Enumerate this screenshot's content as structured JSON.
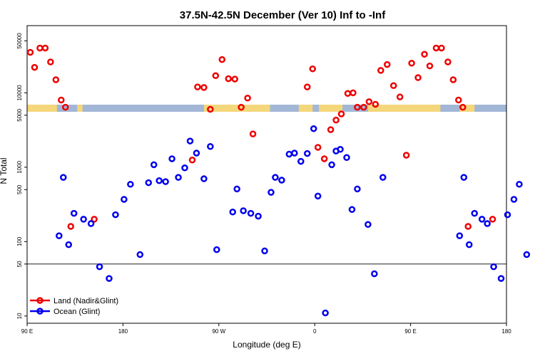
{
  "chart_data": {
    "type": "scatter",
    "title": "37.5N-42.5N December (Ver 10)   Inf to -Inf",
    "xlabel": "Longitude (deg E)",
    "ylabel": "N Total",
    "x_ticks": [
      {
        "value": 90,
        "label": "90 E"
      },
      {
        "value": 180,
        "label": "180"
      },
      {
        "value": 270,
        "label": "90 W"
      },
      {
        "value": 360,
        "label": "0"
      },
      {
        "value": 450,
        "label": "90 E"
      },
      {
        "value": 540,
        "label": "180"
      }
    ],
    "y_ticks": [
      10,
      50,
      100,
      500,
      1000,
      5000,
      10000,
      50000
    ],
    "xlim": [
      90,
      540
    ],
    "ylim_log": [
      8,
      80000
    ],
    "reference_line_y": 50,
    "series": [
      {
        "name": "Land (Nadir&Glint)",
        "color": "#ee0000",
        "points": [
          [
            93,
            35000
          ],
          [
            97,
            22000
          ],
          [
            102,
            40000
          ],
          [
            107,
            40000
          ],
          [
            112,
            26000
          ],
          [
            117,
            15000
          ],
          [
            122,
            8000
          ],
          [
            126,
            6400
          ],
          [
            131,
            160
          ],
          [
            153,
            200
          ],
          [
            245,
            1250
          ],
          [
            250,
            12000
          ],
          [
            256,
            11800
          ],
          [
            262,
            6000
          ],
          [
            267,
            17000
          ],
          [
            273,
            28000
          ],
          [
            279,
            15500
          ],
          [
            285,
            15300
          ],
          [
            291,
            6400
          ],
          [
            297,
            8500
          ],
          [
            302,
            2800
          ],
          [
            353,
            12000
          ],
          [
            358,
            21000
          ],
          [
            363,
            1850
          ],
          [
            369,
            1300
          ],
          [
            375,
            3200
          ],
          [
            380,
            4300
          ],
          [
            385,
            5200
          ],
          [
            391,
            9800
          ],
          [
            396,
            10000
          ],
          [
            400,
            6400
          ],
          [
            406,
            6400
          ],
          [
            411,
            7600
          ],
          [
            417,
            7000
          ],
          [
            422,
            20000
          ],
          [
            428,
            24000
          ],
          [
            434,
            12500
          ],
          [
            440,
            8800
          ],
          [
            446,
            1450
          ],
          [
            451,
            25000
          ],
          [
            457,
            16000
          ],
          [
            463,
            33000
          ],
          [
            468,
            23000
          ],
          [
            474,
            40000
          ],
          [
            479,
            40000
          ],
          [
            485,
            26000
          ],
          [
            490,
            15000
          ],
          [
            495,
            8000
          ],
          [
            499,
            6400
          ],
          [
            504,
            160
          ],
          [
            527,
            200
          ]
        ]
      },
      {
        "name": "Ocean (Glint)",
        "color": "#0000ee",
        "points": [
          [
            120,
            120
          ],
          [
            124,
            730
          ],
          [
            129,
            91
          ],
          [
            134,
            240
          ],
          [
            143,
            200
          ],
          [
            150,
            175
          ],
          [
            158,
            46
          ],
          [
            167,
            32
          ],
          [
            173,
            230
          ],
          [
            181,
            370
          ],
          [
            187,
            590
          ],
          [
            196,
            67
          ],
          [
            204,
            620
          ],
          [
            209,
            1080
          ],
          [
            214,
            660
          ],
          [
            220,
            640
          ],
          [
            226,
            1300
          ],
          [
            232,
            730
          ],
          [
            238,
            980
          ],
          [
            243,
            2250
          ],
          [
            249,
            1550
          ],
          [
            256,
            700
          ],
          [
            262,
            1900
          ],
          [
            268,
            78
          ],
          [
            283,
            250
          ],
          [
            287,
            510
          ],
          [
            293,
            260
          ],
          [
            300,
            240
          ],
          [
            307,
            220
          ],
          [
            313,
            75
          ],
          [
            319,
            460
          ],
          [
            323,
            730
          ],
          [
            329,
            670
          ],
          [
            336,
            1500
          ],
          [
            341,
            1550
          ],
          [
            347,
            1200
          ],
          [
            353,
            1530
          ],
          [
            359,
            3300
          ],
          [
            363,
            410
          ],
          [
            370,
            11
          ],
          [
            376,
            1080
          ],
          [
            380,
            1650
          ],
          [
            384,
            1740
          ],
          [
            390,
            1350
          ],
          [
            395,
            270
          ],
          [
            400,
            510
          ],
          [
            410,
            170
          ],
          [
            416,
            37
          ],
          [
            424,
            730
          ],
          [
            496,
            120
          ],
          [
            500,
            730
          ],
          [
            505,
            91
          ],
          [
            510,
            240
          ],
          [
            517,
            200
          ],
          [
            522,
            175
          ],
          [
            528,
            46
          ],
          [
            535,
            32
          ],
          [
            541,
            230
          ],
          [
            547,
            370
          ],
          [
            552,
            590
          ],
          [
            559,
            67
          ]
        ]
      }
    ],
    "legend": {
      "position": "bottom-left",
      "entries": [
        "Land (Nadir&Glint)",
        "Ocean (Glint)"
      ]
    },
    "coastline_band": {
      "land_color": "#f5d77b",
      "ocean_color": "#a2b6d6",
      "land_segments": [
        [
          90,
          118
        ],
        [
          137,
          142
        ],
        [
          256,
          318
        ],
        [
          345,
          358
        ],
        [
          364,
          386
        ],
        [
          410,
          478
        ],
        [
          496,
          510
        ]
      ]
    }
  }
}
